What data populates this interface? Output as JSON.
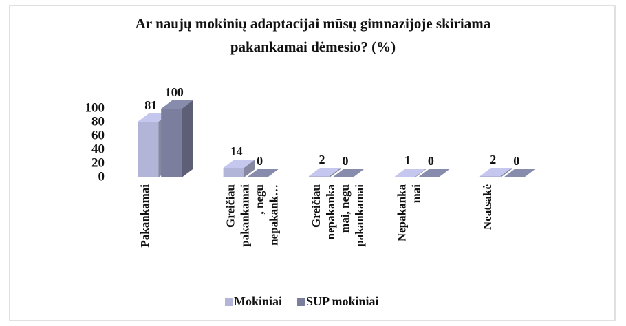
{
  "chart_data": {
    "type": "bar3d",
    "title": [
      "Ar naujų mokinių adaptacijai mūsų gimnazijoje skiriama",
      "pakankamai dėmesio? (%)"
    ],
    "categories": [
      "Pakankamai",
      "Greičiau\npakankamai\n, negu\nnepakank…",
      "Greičiau\nnepakanka\nmai, negu\npakankamai",
      "Nepakanka\nmai",
      "Neatsakė"
    ],
    "series": [
      {
        "name": "Mokiniai",
        "color": "#b3b5d8",
        "values": [
          81,
          14,
          2,
          1,
          2
        ]
      },
      {
        "name": "SUP mokiniai",
        "color": "#7b7e9c",
        "values": [
          100,
          0,
          0,
          0,
          0
        ]
      }
    ],
    "ylim": [
      0,
      100
    ],
    "yticks": [
      0,
      20,
      40,
      60,
      80,
      100
    ],
    "legend": "bottom"
  }
}
